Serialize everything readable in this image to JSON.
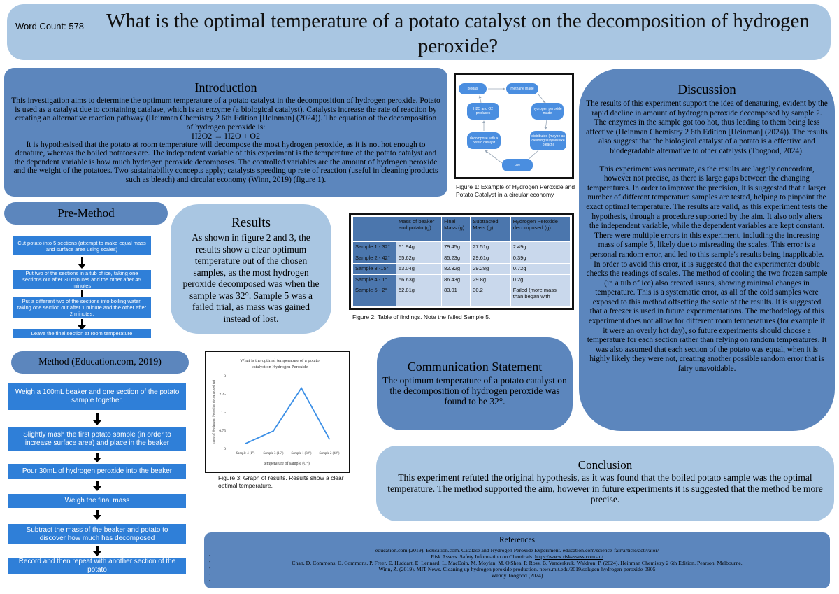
{
  "header": {
    "word_count": "Word Count: 578",
    "title": "What is the optimal temperature of a potato catalyst on the decomposition of hydrogen peroxide?"
  },
  "introduction": {
    "heading": "Introduction",
    "para1": "This investigation aims to determine the optimum temperature of a potato catalyst in the decomposition of hydrogen peroxide. Potato is used as a catalyst due to containing catalase, which is an enzyme (a biological catalyst). Catalysts increase the rate of reaction by creating an alternative reaction pathway (Heinman Chemistry 2 6th Edition [Heinman] (2024)). The equation of the decomposition of hydrogen peroxide is:",
    "equation": "H2O2 → H2O + O2",
    "para2": "It is hypothesised that the potato at room temperature will decompose the most hydrogen peroxide, as it is not hot enough to denature, whereas the boiled potatoes are. The independent variable of this experiment is the temperature of the potato catalyst and the dependent variable is how much hydrogen peroxide decomposes. The controlled variables are the amount of hydrogen peroxide and the weight of the potatoes. Two sustainability concepts apply; catalysts speeding up rate of reaction (useful in cleaning products such as bleach) and circular economy (Winn, 2019) (figure 1)."
  },
  "figure1": {
    "nodes": {
      "biogas": "biogas",
      "methane": "methane made",
      "h2o_o2": "H2O and O2 produces",
      "h2o2": "hydrogen peroxide made",
      "decompose": "decompose with a potato catalyst",
      "distributed": "distributed (maybe as cleaning supplies like bleach)",
      "use": "use"
    },
    "caption": "Figure 1: Example of Hydrogen Peroxide and Potato Catalyst in a circular economy"
  },
  "discussion": {
    "heading": "Discussion",
    "para1": "The results of this experiment support the idea of denaturing, evident by the rapid decline in amount of hydrogen peroxide decomposed by sample 2. The enzymes in the sample got too hot, thus leading to them being less affective (Heinman Chemistry 2 6th Edition [Heinman] (2024)). The results also suggest that the biological catalyst of a potato is a effective and biodegradable alternative to other catalysts (Toogood, 2024).",
    "para2": "This experiment was accurate, as the results are largely concordant, however not precise, as there is large gaps between the changing temperatures. In order to improve the precision, it is suggested that a larger number of different temperature samples are tested, helping to pinpoint the exact optimal temperature. The results are valid, as this experiment tests the hypothesis, through a procedure supported by the aim. It also only alters the independent variable, while the dependent variables are kept constant. There were multiple errors in this experiment, including the increasing mass of sample 5, likely due to misreading the scales. This error is a personal random error, and led to this sample's results being inapplicable. In order to avoid this error, it is suggested that the experimenter double checks the readings of scales. The method of cooling the two frozen sample (in a tub of ice) also created issues, showing minimal changes in temperature. This is a systematic error, as all of the cold samples were exposed to this method offsetting the scale of the results. It is suggested that a freezer is used in future experimentations. The methodology of this experiment does not allow for different room temperatures (for example if it were an overly hot day), so future experiments should choose a temperature for each section rather than relying on random temperatures. It was also assumed that each section of the potato was equal, when it is highly likely they were not, creating another possible random error that is fairy unavoidable."
  },
  "pre_method": {
    "heading": "Pre-Method",
    "steps": [
      "Cut potato into 5 sections (attempt to make equal mass and surface area using scales)",
      "Put two of the sections in a tub of ice, taking one sections out after 30 minutes and the other after 45 minutes",
      "Put a different two of the sections into boiling water, taking one section out after 1 minute and the other after 2 minutes.",
      "Leave the final section at room temperature"
    ]
  },
  "method": {
    "heading": "Method (Education.com, 2019)",
    "steps": [
      "Weigh a 100mL beaker and one section of the potato sample together.",
      "Slightly mash the first potato sample (in order to increase surface area) and place in the beaker",
      "Pour 30mL of hydrogen peroxide into the beaker",
      "Weigh the final mass",
      "Subtract the mass of the beaker and potato to discover how much has decomposed",
      "Record and then repeat with another section of the potato"
    ]
  },
  "results": {
    "heading": "Results",
    "text": "As shown in figure 2 and 3, the results show a clear optimum temperature out of the chosen samples, as the most hydrogen peroxide decomposed was when the sample was 32°. Sample 5 was a failed trial, as mass was gained instead of lost."
  },
  "table": {
    "headers": [
      "",
      "Mass of beaker and potato (g)",
      "Final Mass (g)",
      "Subtracted Mass (g)",
      "Hydrogen Peroxide decomposed (g)"
    ],
    "rows": [
      [
        "Sample 1 - 32°",
        "51.94g",
        "79.45g",
        "27.51g",
        "2.49g"
      ],
      [
        "Sample 2 - 42°",
        "55.62g",
        "85.23g",
        "29.61g",
        "0.39g"
      ],
      [
        "Sample 3 -15°",
        "53.04g",
        "82.32g",
        "29.28g",
        "0.72g"
      ],
      [
        "Sample 4 - 1°",
        "56.63g",
        "86.43g",
        "29.8g",
        "0.2g"
      ],
      [
        "Sample 5 - 2°",
        "52.81g",
        "83.01",
        "30.2",
        "Failed (more mass than began with"
      ]
    ],
    "caption": "Figure 2: Table of findings. Note the failed Sample 5."
  },
  "chart_data": {
    "type": "line",
    "title": "What is the optimal temperature of a potato catalyst on Hydrogen Peroxide",
    "xlabel": "temperature of sample (C°)",
    "ylabel": "mass of Hydrogen Peroxide decomposed (g)",
    "categories": [
      "Sample 4 (1°)",
      "Sample 3 (15°)",
      "Sample 1 (32°)",
      "Sample 2 (42°)"
    ],
    "values": [
      0.2,
      0.72,
      2.49,
      0.39
    ],
    "yticks": [
      "0",
      "0.75",
      "1.5",
      "2.25",
      "3"
    ],
    "ylim": [
      0,
      3
    ],
    "grid": false,
    "color": "#3b8fe6"
  },
  "figure3": {
    "caption": "Figure 3: Graph of results. Results show a clear optimal temperature."
  },
  "communication": {
    "heading": "Communication Statement",
    "text": "The optimum temperature of a potato catalyst on the decomposition of hydrogen peroxide was found to be 32°."
  },
  "conclusion": {
    "heading": "Conclusion",
    "text": "This experiment refuted the original hypothesis, as it was found that the boiled potato sample was the optimal temperature. The method supported the aim, however in future experiments it is suggested that the method be more precise."
  },
  "references": {
    "heading": "References",
    "r1_link": "education.com",
    "r1_text": " (2019). Education.com. Catalase and Hydrogen Peroxide Experiment. ",
    "r1_url": "education.com/science-fair/article/activator/",
    "r2_text": "Risk Assess. Safety Information on Chemicals. ",
    "r2_url": "https://www.riskassess.com.au/",
    "r3_text": "Chan, D. Commons, C. Commons, P. Freer, E. Huddart, E. Lennard, L. MacEoin, M. Moylan, M. O'Shea, P. Ross, B. Vanderkruk. Waldron, P. (2024). Heinman Chemistry 2 6th Edition. Pearson, Melbourne.",
    "r4_text": "Winn, Z. (2019). MIT News. Cleaning up hydrogen peroxide production. ",
    "r4_url": "news.mit.edu/2019/solugen-hydrogen-peroxide-0905",
    "r5_text": "Wendy Toogood (2024)",
    "dashes": [
      "-",
      "-",
      "-",
      "-",
      "-"
    ]
  },
  "colors": {
    "light_blue": "#a9c6e2",
    "mid_blue": "#5c86bd",
    "step_blue": "#2f7fd8"
  }
}
